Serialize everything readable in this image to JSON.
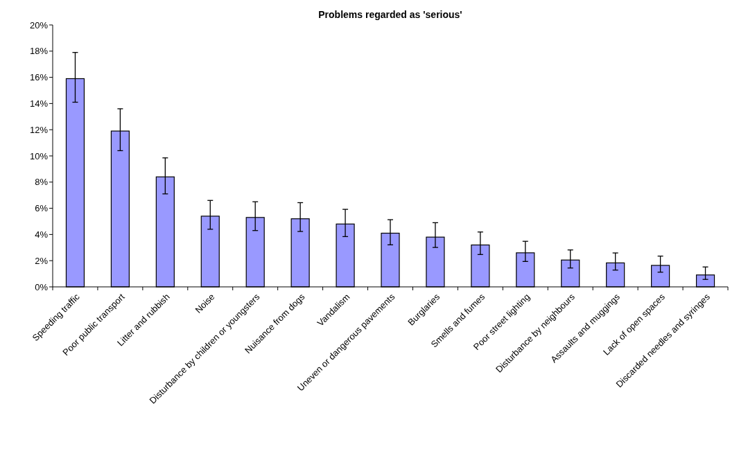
{
  "chart_data": {
    "type": "bar",
    "title": "Problems regarded as 'serious'",
    "categories": [
      "Speeding traffic",
      "Poor public transport",
      "Litter and rubbish",
      "Noise",
      "Disturbance by children or youngsters",
      "Nuisance from dogs",
      "Vandalism",
      "Uneven or dangerous pavements",
      "Burglaries",
      "Smells and fumes",
      "Poor street lighting",
      "Disturbance by neighbours",
      "Assaults and muggings",
      "Lack of open spaces",
      "Discarded needles and syringes"
    ],
    "values": [
      15.9,
      11.9,
      8.4,
      5.4,
      5.3,
      5.2,
      4.8,
      4.1,
      3.8,
      3.2,
      2.6,
      2.05,
      1.83,
      1.64,
      0.91
    ],
    "errors": [
      [
        14.1,
        17.9
      ],
      [
        10.4,
        13.6
      ],
      [
        7.1,
        9.85
      ],
      [
        4.4,
        6.6
      ],
      [
        4.3,
        6.5
      ],
      [
        4.23,
        6.43
      ],
      [
        3.84,
        5.92
      ],
      [
        3.21,
        5.13
      ],
      [
        3.01,
        4.9
      ],
      [
        2.47,
        4.19
      ],
      [
        1.94,
        3.48
      ],
      [
        1.44,
        2.82
      ],
      [
        1.28,
        2.59
      ],
      [
        1.12,
        2.35
      ],
      [
        0.57,
        1.52
      ]
    ],
    "color": "#9999ff",
    "ylim": [
      0,
      20
    ],
    "yticks": [
      {
        "value": 0,
        "label": "0%"
      },
      {
        "value": 2,
        "label": "2%"
      },
      {
        "value": 4,
        "label": "4%"
      },
      {
        "value": 6,
        "label": "6%"
      },
      {
        "value": 8,
        "label": "8%"
      },
      {
        "value": 10,
        "label": "10%"
      },
      {
        "value": 12,
        "label": "12%"
      },
      {
        "value": 14,
        "label": "14%"
      },
      {
        "value": 16,
        "label": "16%"
      },
      {
        "value": 18,
        "label": "18%"
      },
      {
        "value": 20,
        "label": "20%"
      }
    ]
  }
}
